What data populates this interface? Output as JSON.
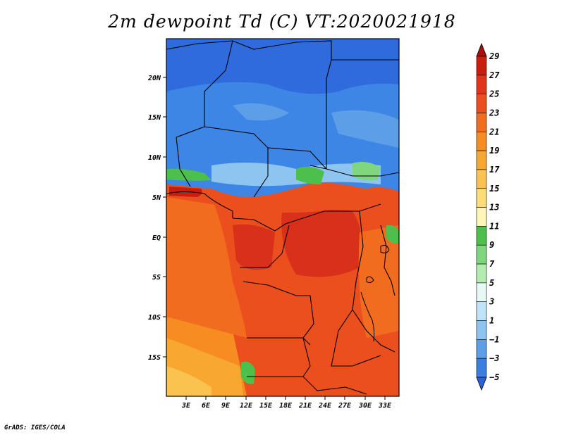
{
  "title": "2m dewpoint Td (C) VT:2020021918",
  "credit": "GrADS: IGES/COLA",
  "map": {
    "lat_labels": [
      "20N",
      "15N",
      "10N",
      "5N",
      "EQ",
      "5S",
      "10S",
      "15S"
    ],
    "lon_labels": [
      "3E",
      "6E",
      "9E",
      "12E",
      "15E",
      "18E",
      "21E",
      "24E",
      "27E",
      "30E",
      "33E"
    ]
  },
  "colorbar": {
    "labels": [
      "29",
      "27",
      "25",
      "23",
      "21",
      "19",
      "17",
      "15",
      "13",
      "11",
      "9",
      "7",
      "5",
      "3",
      "1",
      "−1",
      "−3",
      "−5"
    ],
    "colors": [
      "#a50f0f",
      "#c81e10",
      "#e0351a",
      "#ec4f1e",
      "#f26c1f",
      "#f68c22",
      "#f8a831",
      "#fac24f",
      "#fbdc78",
      "#fdf6b8",
      "#4dbf4d",
      "#7fd67f",
      "#b3ebb0",
      "#e6f9f4",
      "#bfe4f7",
      "#8dc4f0",
      "#5c9fe8",
      "#3b7de0",
      "#2863d6"
    ]
  },
  "colors": {
    "frame": "#000000",
    "blue_region": "#3d86e6",
    "north_region": "#2f6bdc",
    "orange_region": "#ec4f1e",
    "south_region": "#f8a831"
  }
}
